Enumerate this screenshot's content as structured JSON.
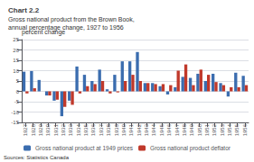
{
  "chart_data": {
    "type": "bar",
    "title": "Chart 2.2",
    "subtitle": [
      "Gross national product from the Brown Book,",
      "annual percentage change, 1927 to 1956"
    ],
    "ylabel": "percent change",
    "annotations": [
      "Sources: Statistics Canada"
    ],
    "categories": [
      "1927",
      "1928",
      "1929",
      "1930",
      "1931",
      "1932",
      "1933",
      "1934",
      "1935",
      "1936",
      "1937",
      "1938",
      "1939",
      "1940",
      "1941",
      "1942",
      "1943",
      "1944",
      "1945",
      "1946",
      "1947",
      "1948",
      "1949",
      "1950",
      "1951",
      "1952",
      "1953",
      "1954",
      "1955",
      "1956"
    ],
    "series": [
      {
        "name": "Gross national product at 1949 prices",
        "color": "#3b6daf",
        "values": [
          9.5,
          9.8,
          5.5,
          -2.0,
          -4.5,
          -12.0,
          -4.5,
          12.0,
          8.0,
          5.0,
          10.5,
          1.0,
          8.0,
          14.5,
          14.5,
          19.0,
          4.0,
          4.0,
          2.5,
          -1.5,
          2.0,
          7.0,
          6.5,
          8.5,
          5.0,
          8.5,
          4.0,
          -2.5,
          9.0,
          7.5
        ]
      },
      {
        "name": "Gross national product deflator",
        "color": "#c0392b",
        "values": [
          -1.0,
          1.5,
          0.0,
          -2.0,
          -4.0,
          -7.5,
          -6.5,
          -1.0,
          2.5,
          3.5,
          5.0,
          -1.0,
          -0.5,
          5.0,
          8.0,
          5.0,
          4.0,
          3.5,
          3.5,
          3.0,
          10.0,
          13.0,
          3.0,
          10.5,
          8.0,
          4.5,
          3.0,
          2.0,
          2.0,
          3.0
        ]
      }
    ],
    "ylim": [
      -15,
      25
    ],
    "yticks": [
      -15,
      -10,
      -5,
      0,
      5,
      10,
      15,
      20,
      25
    ],
    "grid": true,
    "legend": "bottom"
  }
}
